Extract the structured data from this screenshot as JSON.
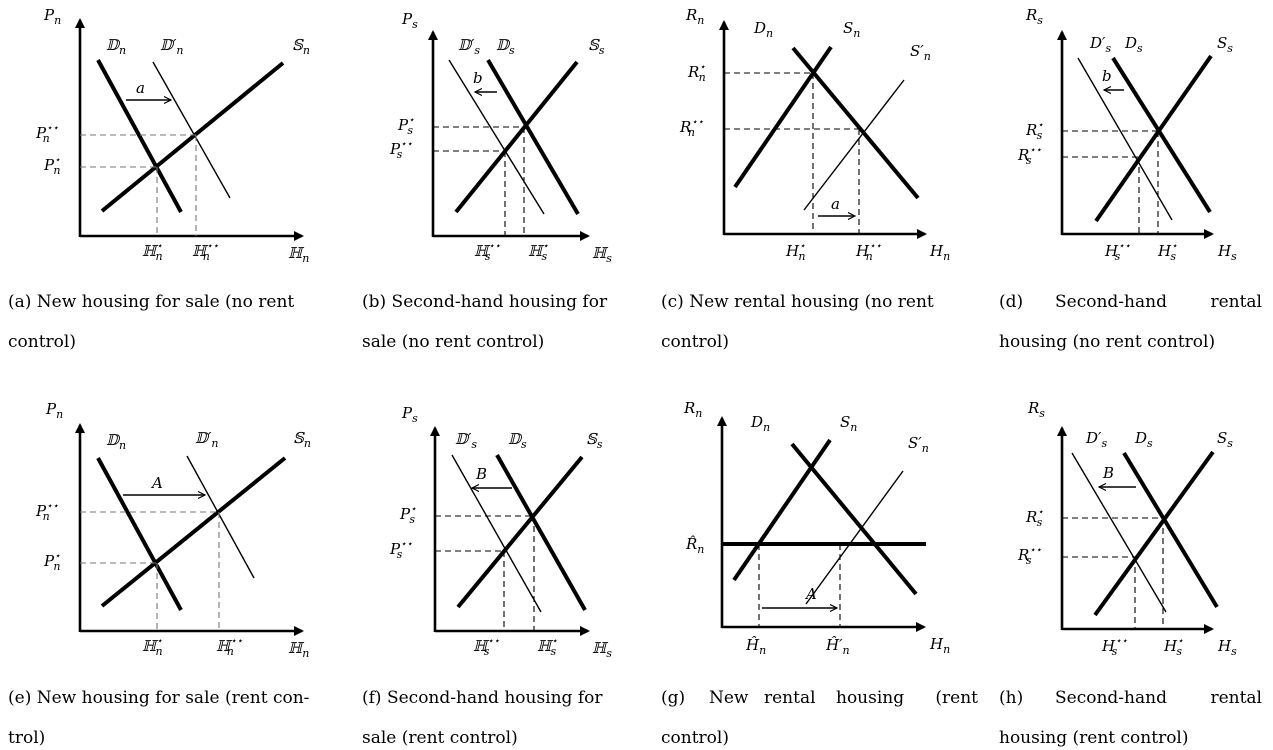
{
  "panels": {
    "a": {
      "y_axis": "P",
      "y_sub": "n",
      "x_axis": "ℍ",
      "x_sub": "n",
      "demand": "𝔻",
      "demand_sub": "n",
      "demand_shift": "𝔻′",
      "demand_shift_sub": "n",
      "supply": "𝕊",
      "supply_sub": "n",
      "shift": "a",
      "p1": "P",
      "p1_sup": "⋆",
      "p1_sub": "n",
      "p2": "P",
      "p2_sup": "⋆⋆",
      "p2_sub": "n",
      "q1": "ℍ",
      "q1_sup": "⋆",
      "q1_sub": "n",
      "q2": "ℍ",
      "q2_sup": "⋆⋆",
      "q2_sub": "n",
      "caption_line1": "(a) New housing for sale (no rent",
      "caption_line2": "control)"
    },
    "b": {
      "y_axis": "P",
      "y_sub": "s",
      "x_axis": "ℍ",
      "x_sub": "s",
      "demand_shift": "𝔻′",
      "demand_shift_sub": "s",
      "demand": "𝔻",
      "demand_sub": "s",
      "supply": "𝕊",
      "supply_sub": "s",
      "shift": "b",
      "p1": "P",
      "p1_sup": "⋆",
      "p1_sub": "s",
      "p2": "P",
      "p2_sup": "⋆⋆",
      "p2_sub": "s",
      "q2": "ℍ",
      "q2_sup": "⋆⋆",
      "q2_sub": "s",
      "q1": "ℍ",
      "q1_sup": "⋆",
      "q1_sub": "s",
      "caption_line1": "(b) Second-hand housing for",
      "caption_line2": "sale (no rent control)"
    },
    "c": {
      "y_axis": "R",
      "y_sub": "n",
      "x_axis": "H",
      "x_sub": "n",
      "demand": "D",
      "demand_sub": "n",
      "supply": "S",
      "supply_sub": "n",
      "supply_shift": "S′",
      "supply_shift_sub": "n",
      "shift": "a",
      "p1": "R",
      "p1_sup": "⋆",
      "p1_sub": "n",
      "p2": "R",
      "p2_sup": "⋆⋆",
      "p2_sub": "n",
      "q1": "H",
      "q1_sup": "⋆",
      "q1_sub": "n",
      "q2": "H",
      "q2_sup": "⋆⋆",
      "q2_sub": "n",
      "caption_line1": "(c) New rental housing (no rent",
      "caption_line2": "control)"
    },
    "d": {
      "y_axis": "R",
      "y_sub": "s",
      "x_axis": "H",
      "x_sub": "s",
      "demand_shift": "D′",
      "demand_shift_sub": "s",
      "demand": "D",
      "demand_sub": "s",
      "supply": "S",
      "supply_sub": "s",
      "shift": "b",
      "p1": "R",
      "p1_sup": "⋆",
      "p1_sub": "s",
      "p2": "R",
      "p2_sup": "⋆⋆",
      "p2_sub": "s",
      "q2": "H",
      "q2_sup": "⋆⋆",
      "q2_sub": "s",
      "q1": "H",
      "q1_sup": "⋆",
      "q1_sub": "s",
      "caption_w1": "(d)",
      "caption_w2": "Second-hand",
      "caption_w3": "rental",
      "caption_line2": "housing (no rent control)"
    },
    "e": {
      "y_axis": "P",
      "y_sub": "n",
      "x_axis": "ℍ",
      "x_sub": "n",
      "demand": "𝔻",
      "demand_sub": "n",
      "demand_shift": "𝔻′",
      "demand_shift_sub": "n",
      "supply": "𝕊",
      "supply_sub": "n",
      "shift": "A",
      "p2": "P",
      "p2_sup": "⋆⋆",
      "p2_sub": "n",
      "p1": "P",
      "p1_sup": "⋆",
      "p1_sub": "n",
      "q1": "ℍ",
      "q1_sup": "⋆",
      "q1_sub": "n",
      "q2": "ℍ",
      "q2_sup": "⋆⋆",
      "q2_sub": "n",
      "caption_line1": "(e) New housing for sale (rent con-",
      "caption_line2": "trol)"
    },
    "f": {
      "y_axis": "P",
      "y_sub": "s",
      "x_axis": "ℍ",
      "x_sub": "s",
      "demand_shift": "𝔻′",
      "demand_shift_sub": "s",
      "demand": "𝔻",
      "demand_sub": "s",
      "supply": "𝕊",
      "supply_sub": "s",
      "shift": "B",
      "p1": "P",
      "p1_sup": "⋆",
      "p1_sub": "s",
      "p2": "P",
      "p2_sup": "⋆⋆",
      "p2_sub": "s",
      "q2": "ℍ",
      "q2_sup": "⋆⋆",
      "q2_sub": "s",
      "q1": "ℍ",
      "q1_sup": "⋆",
      "q1_sub": "s",
      "caption_line1": "(f) Second-hand housing for",
      "caption_line2": "sale (rent control)"
    },
    "g": {
      "y_axis": "R",
      "y_sub": "n",
      "x_axis": "H",
      "x_sub": "n",
      "demand": "D",
      "demand_sub": "n",
      "supply": "S",
      "supply_sub": "n",
      "supply_shift": "S′",
      "supply_shift_sub": "n",
      "shift": "A",
      "ceiling": "R̂",
      "ceiling_sub": "n",
      "q1": "Ĥ",
      "q1_sub": "n",
      "q2": "Ĥ′",
      "q2_sub": "n",
      "caption_w1": "(g)",
      "caption_w2": "New",
      "caption_w3": "rental",
      "caption_w4": "housing",
      "caption_w5": "(rent",
      "caption_line2": "control)"
    },
    "h": {
      "y_axis": "R",
      "y_sub": "s",
      "x_axis": "H",
      "x_sub": "s",
      "demand_shift": "D′",
      "demand_shift_sub": "s",
      "demand": "D",
      "demand_sub": "s",
      "supply": "S",
      "supply_sub": "s",
      "shift": "B",
      "p1": "R",
      "p1_sup": "⋆",
      "p1_sub": "s",
      "p2": "R",
      "p2_sup": "⋆⋆",
      "p2_sub": "s",
      "q2": "H",
      "q2_sup": "⋆⋆",
      "q2_sub": "s",
      "q1": "H",
      "q1_sup": "⋆",
      "q1_sub": "s",
      "caption_w1": "(h)",
      "caption_w2": "Second-hand",
      "caption_w3": "rental",
      "caption_line2": "housing (rent control)"
    }
  }
}
